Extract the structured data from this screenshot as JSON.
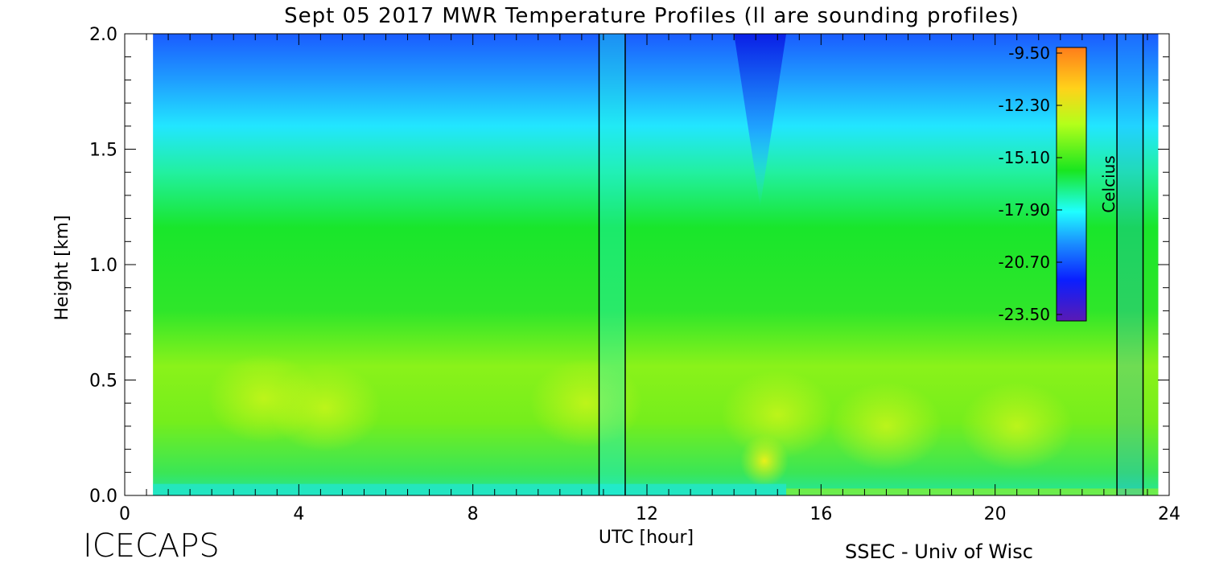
{
  "chart_data": {
    "type": "heatmap",
    "title": "Sept 05 2017 MWR Temperature Profiles (ll are sounding profiles)",
    "xlabel": "UTC [hour]",
    "ylabel": "Height [km]",
    "xlim": [
      0,
      24
    ],
    "ylim": [
      0,
      2.0
    ],
    "x_ticks": [
      "0",
      "4",
      "8",
      "12",
      "16",
      "20",
      "24"
    ],
    "y_ticks": [
      "0.0",
      "0.5",
      "1.0",
      "1.5",
      "2.0"
    ],
    "colorbar": {
      "label": "Celcius",
      "ticks": [
        "-9.50",
        "-12.30",
        "-15.10",
        "-17.90",
        "-20.70",
        "-23.50"
      ],
      "range": [
        -23.5,
        -9.5
      ]
    },
    "data_extent_hours": [
      0.65,
      23.75
    ],
    "sounding_profiles_utc": [
      10.9,
      11.5,
      22.8,
      23.4
    ],
    "notable_features": [
      {
        "hour": 14.6,
        "description": "cold intrusion down to ~1.3 km"
      },
      {
        "hour": 14.7,
        "description": "warm near-surface maximum (~ -12 C)"
      }
    ],
    "surface_layer": "cooler (cyan) below 0.05 km before 15 UTC"
  },
  "footer": {
    "logo": "ICECAPS",
    "credit": "SSEC - Univ of Wisc"
  }
}
